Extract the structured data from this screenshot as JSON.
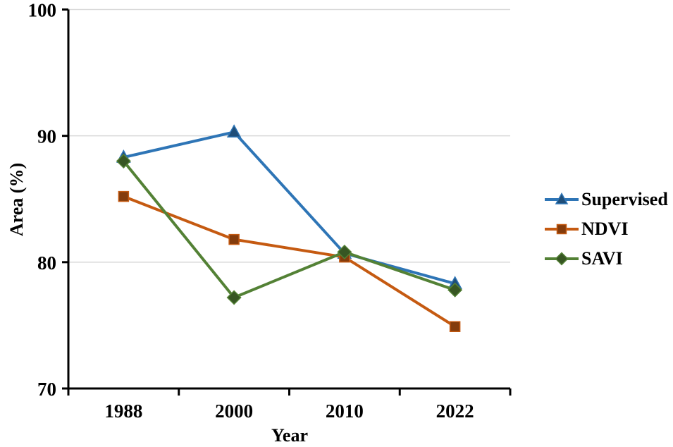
{
  "chart_data": {
    "type": "line",
    "title": "",
    "xlabel": "Year",
    "ylabel": "Area (%)",
    "categories": [
      "1988",
      "2000",
      "2010",
      "2022"
    ],
    "ylim": [
      70,
      100
    ],
    "yticks": [
      70,
      80,
      90,
      100
    ],
    "grid": "horizontal",
    "legend_position": "right",
    "series": [
      {
        "name": "Supervised",
        "marker": "triangle",
        "line_color": "#2E75B6",
        "marker_color": "#1F4E79",
        "values": [
          88.3,
          90.3,
          80.7,
          78.3
        ]
      },
      {
        "name": "NDVI",
        "marker": "square",
        "line_color": "#C55A11",
        "marker_color": "#843C0C",
        "values": [
          85.2,
          81.8,
          80.4,
          74.9
        ]
      },
      {
        "name": "SAVI",
        "marker": "diamond",
        "line_color": "#538135",
        "marker_color": "#375623",
        "values": [
          88.0,
          77.2,
          80.8,
          77.8
        ]
      }
    ],
    "colors": {
      "gridline": "#D9D9D9",
      "axis": "#000000",
      "text": "#000000",
      "background": "#FFFFFF"
    }
  }
}
